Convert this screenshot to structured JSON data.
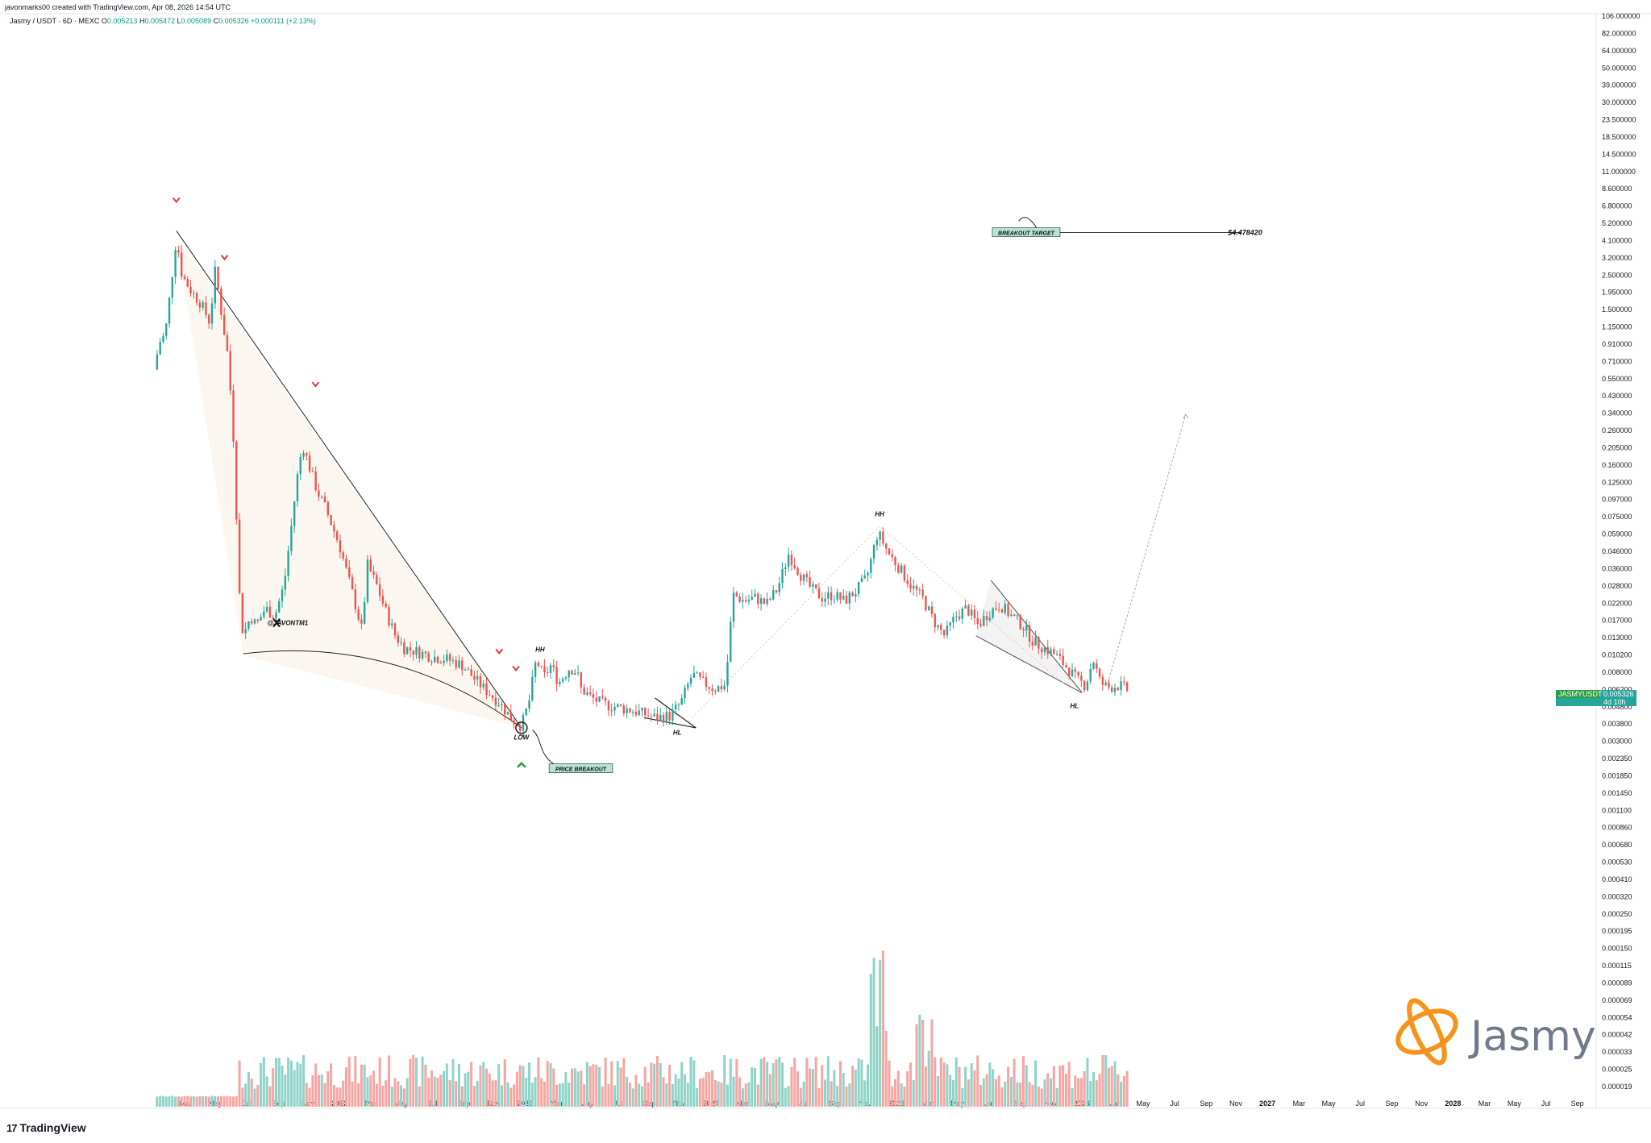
{
  "header": {
    "creator": "javonmarks00 created with TradingView.com, Apr 08, 2026 14:54 UTC",
    "symbol": "Jasmy / USDT · 6D · MEXC",
    "ohlc": {
      "o_label": "O",
      "o": "0.005213",
      "h_label": "H",
      "h": "0.005472",
      "l_label": "L",
      "l": "0.005089",
      "c_label": "C",
      "c": "0.005326",
      "change": "+0.000111 (+2.13%)"
    }
  },
  "footer": {
    "brand": "TradingView",
    "mark": "17"
  },
  "watermark": {
    "brand_text": "Jasmy",
    "brand_color": "#f7931a"
  },
  "price_tag": {
    "symbol": "JASMYUSDT",
    "value": "0.005326",
    "countdown": "4d 10h"
  },
  "colors": {
    "up": "#26a69a",
    "down": "#ef5350",
    "vol_up": "#8fd3c8",
    "vol_down": "#f4a6a3",
    "accent_green": "#2e9e41"
  },
  "chart_data": {
    "type": "candlestick",
    "title": "Jasmy / USDT · 6D · MEXC",
    "y_scale": "log",
    "price_axis_labels": [
      "106.000000",
      "82.000000",
      "64.000000",
      "50.000000",
      "39.000000",
      "30.000000",
      "23.500000",
      "18.500000",
      "14.500000",
      "11.000000",
      "8.600000",
      "6.800000",
      "5.200000",
      "4.100000",
      "3.200000",
      "2.500000",
      "1.950000",
      "1.500000",
      "1.150000",
      "0.910000",
      "0.710000",
      "0.550000",
      "0.430000",
      "0.340000",
      "0.260000",
      "0.205000",
      "0.160000",
      "0.125000",
      "0.097000",
      "0.075000",
      "0.059000",
      "0.046000",
      "0.036000",
      "0.028000",
      "0.022000",
      "0.017000",
      "0.013000",
      "0.010200",
      "0.008000",
      "0.006200",
      "0.004800",
      "0.003800",
      "0.003000",
      "0.002350",
      "0.001850",
      "0.001450",
      "0.001100",
      "0.000860",
      "0.000680",
      "0.000530",
      "0.000410",
      "0.000320",
      "0.000250",
      "0.000195",
      "0.000150",
      "0.000115",
      "0.000089",
      "0.000069",
      "0.000054",
      "0.000042",
      "0.000033",
      "0.000025",
      "0.000019"
    ],
    "time_axis_labels": [
      {
        "t": 2021.17,
        "label": "Mar"
      },
      {
        "t": 2021.33,
        "label": "May"
      },
      {
        "t": 2021.5,
        "label": "Jul"
      },
      {
        "t": 2021.67,
        "label": "Sep"
      },
      {
        "t": 2021.83,
        "label": "Nov"
      },
      {
        "t": 2022.0,
        "label": "2022",
        "bold": true
      },
      {
        "t": 2022.17,
        "label": "Mar"
      },
      {
        "t": 2022.33,
        "label": "May"
      },
      {
        "t": 2022.5,
        "label": "Jul"
      },
      {
        "t": 2022.67,
        "label": "Sep"
      },
      {
        "t": 2022.83,
        "label": "Nov"
      },
      {
        "t": 2023.0,
        "label": "2023",
        "bold": true
      },
      {
        "t": 2023.17,
        "label": "Mar"
      },
      {
        "t": 2023.33,
        "label": "May"
      },
      {
        "t": 2023.5,
        "label": "Jul"
      },
      {
        "t": 2023.67,
        "label": "Sep"
      },
      {
        "t": 2023.83,
        "label": "Nov"
      },
      {
        "t": 2024.0,
        "label": "2024",
        "bold": true
      },
      {
        "t": 2024.17,
        "label": "Mar"
      },
      {
        "t": 2024.33,
        "label": "May"
      },
      {
        "t": 2024.5,
        "label": "Jul"
      },
      {
        "t": 2024.67,
        "label": "Sep"
      },
      {
        "t": 2024.83,
        "label": "Nov"
      },
      {
        "t": 2025.0,
        "label": "2025",
        "bold": true
      },
      {
        "t": 2025.17,
        "label": "Mar"
      },
      {
        "t": 2025.33,
        "label": "May"
      },
      {
        "t": 2025.5,
        "label": "Jul"
      },
      {
        "t": 2025.67,
        "label": "Sep"
      },
      {
        "t": 2025.83,
        "label": "Nov"
      },
      {
        "t": 2026.0,
        "label": "2026",
        "bold": true
      },
      {
        "t": 2026.17,
        "label": "Mar"
      },
      {
        "t": 2026.33,
        "label": "May"
      },
      {
        "t": 2026.5,
        "label": "Jul"
      },
      {
        "t": 2026.67,
        "label": "Sep"
      },
      {
        "t": 2026.83,
        "label": "Nov"
      },
      {
        "t": 2027.0,
        "label": "2027",
        "bold": true
      },
      {
        "t": 2027.17,
        "label": "Mar"
      },
      {
        "t": 2027.33,
        "label": "May"
      },
      {
        "t": 2027.5,
        "label": "Jul"
      },
      {
        "t": 2027.67,
        "label": "Sep"
      },
      {
        "t": 2027.83,
        "label": "Nov"
      },
      {
        "t": 2028.0,
        "label": "2028",
        "bold": true
      },
      {
        "t": 2028.17,
        "label": "Mar"
      },
      {
        "t": 2028.33,
        "label": "May"
      },
      {
        "t": 2028.5,
        "label": "Jul"
      },
      {
        "t": 2028.67,
        "label": "Sep"
      }
    ],
    "price_path": [
      [
        2021.0,
        0.6
      ],
      [
        2021.03,
        0.9
      ],
      [
        2021.06,
        1.0
      ],
      [
        2021.09,
        2.0
      ],
      [
        2021.12,
        4.2
      ],
      [
        2021.15,
        2.4
      ],
      [
        2021.2,
        1.9
      ],
      [
        2021.25,
        1.6
      ],
      [
        2021.3,
        1.2
      ],
      [
        2021.33,
        2.6
      ],
      [
        2021.37,
        1.2
      ],
      [
        2021.4,
        0.7
      ],
      [
        2021.43,
        0.2
      ],
      [
        2021.46,
        0.022
      ],
      [
        2021.48,
        0.012
      ],
      [
        2021.52,
        0.016
      ],
      [
        2021.55,
        0.014
      ],
      [
        2021.6,
        0.018
      ],
      [
        2021.65,
        0.016
      ],
      [
        2021.7,
        0.025
      ],
      [
        2021.74,
        0.06
      ],
      [
        2021.77,
        0.12
      ],
      [
        2021.8,
        0.2
      ],
      [
        2021.84,
        0.14
      ],
      [
        2021.88,
        0.1
      ],
      [
        2021.92,
        0.08
      ],
      [
        2021.96,
        0.06
      ],
      [
        2022.0,
        0.045
      ],
      [
        2022.04,
        0.03
      ],
      [
        2022.08,
        0.02
      ],
      [
        2022.12,
        0.013
      ],
      [
        2022.15,
        0.034
      ],
      [
        2022.2,
        0.025
      ],
      [
        2022.25,
        0.017
      ],
      [
        2022.3,
        0.012
      ],
      [
        2022.35,
        0.01
      ],
      [
        2022.42,
        0.0095
      ],
      [
        2022.5,
        0.0088
      ],
      [
        2022.58,
        0.0085
      ],
      [
        2022.66,
        0.0078
      ],
      [
        2022.72,
        0.0065
      ],
      [
        2022.78,
        0.0055
      ],
      [
        2022.86,
        0.0045
      ],
      [
        2022.93,
        0.0035
      ],
      [
        2022.98,
        0.0032
      ],
      [
        2023.02,
        0.0045
      ],
      [
        2023.06,
        0.0085
      ],
      [
        2023.1,
        0.0065
      ],
      [
        2023.14,
        0.0078
      ],
      [
        2023.18,
        0.006
      ],
      [
        2023.24,
        0.0075
      ],
      [
        2023.28,
        0.007
      ],
      [
        2023.3,
        0.0055
      ],
      [
        2023.36,
        0.0048
      ],
      [
        2023.42,
        0.0044
      ],
      [
        2023.5,
        0.0042
      ],
      [
        2023.58,
        0.004
      ],
      [
        2023.64,
        0.0038
      ],
      [
        2023.7,
        0.0036
      ],
      [
        2023.78,
        0.0037
      ],
      [
        2023.84,
        0.0045
      ],
      [
        2023.9,
        0.0068
      ],
      [
        2023.96,
        0.006
      ],
      [
        2024.02,
        0.0055
      ],
      [
        2024.08,
        0.0058
      ],
      [
        2024.12,
        0.022
      ],
      [
        2024.18,
        0.02
      ],
      [
        2024.24,
        0.021
      ],
      [
        2024.3,
        0.019
      ],
      [
        2024.36,
        0.024
      ],
      [
        2024.42,
        0.04
      ],
      [
        2024.48,
        0.03
      ],
      [
        2024.54,
        0.024
      ],
      [
        2024.6,
        0.021
      ],
      [
        2024.66,
        0.022
      ],
      [
        2024.72,
        0.02
      ],
      [
        2024.78,
        0.023
      ],
      [
        2024.84,
        0.028
      ],
      [
        2024.9,
        0.055
      ],
      [
        2024.96,
        0.04
      ],
      [
        2025.02,
        0.032
      ],
      [
        2025.08,
        0.025
      ],
      [
        2025.14,
        0.021
      ],
      [
        2025.2,
        0.015
      ],
      [
        2025.26,
        0.012
      ],
      [
        2025.32,
        0.016
      ],
      [
        2025.38,
        0.018
      ],
      [
        2025.44,
        0.014
      ],
      [
        2025.5,
        0.017
      ],
      [
        2025.56,
        0.019
      ],
      [
        2025.62,
        0.016
      ],
      [
        2025.68,
        0.014
      ],
      [
        2025.74,
        0.011
      ],
      [
        2025.8,
        0.01
      ],
      [
        2025.86,
        0.009
      ],
      [
        2025.92,
        0.0075
      ],
      [
        2025.98,
        0.0062
      ],
      [
        2026.02,
        0.0058
      ],
      [
        2026.06,
        0.0085
      ],
      [
        2026.1,
        0.006
      ],
      [
        2026.14,
        0.0056
      ],
      [
        2026.2,
        0.0058
      ],
      [
        2026.26,
        0.0053
      ]
    ],
    "volume_note": "volume histogram bars shown in lower pane (log scale)",
    "annotations": [
      {
        "text": "BREAKOUT TARGET",
        "t": 2025.7,
        "price": 4.47842
      },
      {
        "text": "$4.478420",
        "t": 2026.88,
        "price": 4.47842
      },
      {
        "text": "PRICE BREAKOUT",
        "t": 2023.3,
        "price": 0.0017
      },
      {
        "text": "LOW",
        "t": 2022.98,
        "price": 0.0027
      },
      {
        "text": "HH",
        "t": 2023.08,
        "price": 0.0098
      },
      {
        "text": "HL",
        "t": 2023.82,
        "price": 0.0029
      },
      {
        "text": "HH",
        "t": 2024.91,
        "price": 0.072
      },
      {
        "text": "HL",
        "t": 2025.96,
        "price": 0.0043
      },
      {
        "text": "@JAVONTM1",
        "t": 2021.72,
        "price": 0.0145
      }
    ]
  }
}
